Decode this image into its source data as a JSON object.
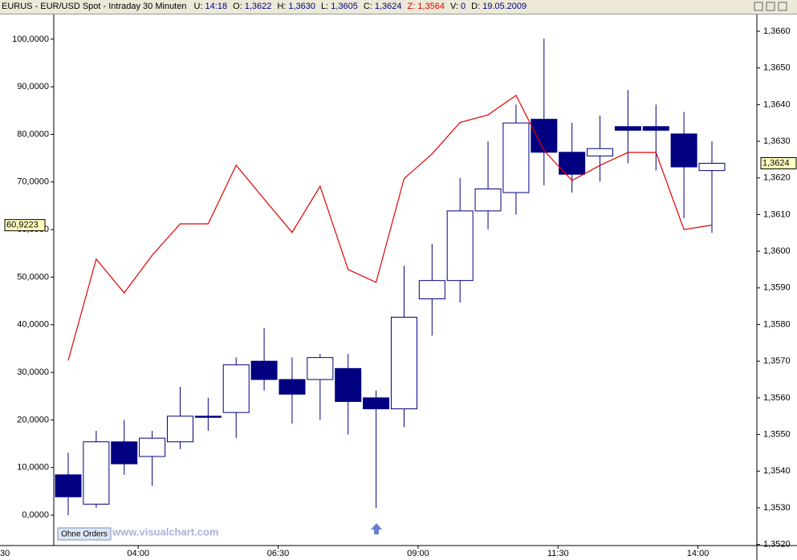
{
  "header": {
    "symbol": "EURUS - EUR/USD Spot - Intraday 30 Minuten",
    "fields": [
      {
        "label": "U:",
        "value": "14:18",
        "color": "#000080"
      },
      {
        "label": "O:",
        "value": "1,3622",
        "color": "#000080"
      },
      {
        "label": "H:",
        "value": "1,3630",
        "color": "#000080"
      },
      {
        "label": "L:",
        "value": "1,3605",
        "color": "#000080"
      },
      {
        "label": "C:",
        "value": "1,3624",
        "color": "#000080"
      },
      {
        "label": "Z:",
        "value": "1,3564",
        "color": "#e00000"
      },
      {
        "label": "V:",
        "value": "0",
        "color": "#000080"
      },
      {
        "label": "D:",
        "value": "19.05.2009",
        "color": "#000080"
      }
    ]
  },
  "button": "Ohne Orders",
  "watermark": "www.visualchart.com",
  "chart_data": {
    "type": "candlestick",
    "categories": [
      null,
      null,
      null,
      "04:00",
      null,
      null,
      null,
      null,
      "06:30",
      null,
      null,
      null,
      null,
      "09:00",
      null,
      null,
      null,
      null,
      "11:30",
      null,
      null,
      null,
      null,
      "14:00"
    ],
    "x_left_label": "30",
    "ylim": [
      -6.4,
      105.2
    ],
    "yticks": [
      {
        "value": 0,
        "label": "0,0000"
      },
      {
        "value": 10,
        "label": "10,0000"
      },
      {
        "value": 20,
        "label": "20,0000"
      },
      {
        "value": 30,
        "label": "30,0000"
      },
      {
        "value": 40,
        "label": "40,0000"
      },
      {
        "value": 50,
        "label": "50,0000"
      },
      {
        "value": 60,
        "label": "60,0000"
      },
      {
        "value": 70,
        "label": "70,0000"
      },
      {
        "value": 80,
        "label": "80,0000"
      },
      {
        "value": 90,
        "label": "90,0000"
      },
      {
        "value": 100,
        "label": "100,0000"
      }
    ],
    "y2lim": [
      1.35197,
      1.36646
    ],
    "y2ticks": [
      {
        "value": 1.352,
        "label": "1,3520"
      },
      {
        "value": 1.353,
        "label": "1,3530"
      },
      {
        "value": 1.354,
        "label": "1,3540"
      },
      {
        "value": 1.355,
        "label": "1,3550"
      },
      {
        "value": 1.356,
        "label": "1,3560"
      },
      {
        "value": 1.357,
        "label": "1,3570"
      },
      {
        "value": 1.358,
        "label": "1,3580"
      },
      {
        "value": 1.359,
        "label": "1,3590"
      },
      {
        "value": 1.36,
        "label": "1,3600"
      },
      {
        "value": 1.361,
        "label": "1,3610"
      },
      {
        "value": 1.362,
        "label": "1,3620"
      },
      {
        "value": 1.363,
        "label": "1,3630"
      },
      {
        "value": 1.364,
        "label": "1,3640"
      },
      {
        "value": 1.365,
        "label": "1,3650"
      },
      {
        "value": 1.366,
        "label": "1,3660"
      }
    ],
    "series": [
      {
        "type": "candlestick",
        "axis": "y2",
        "color": "#000080",
        "open": [
          1.3539,
          1.3531,
          1.3548,
          1.3544,
          1.3548,
          1.3555,
          1.3556,
          1.357,
          1.3565,
          1.3565,
          1.3568,
          1.356,
          1.3557,
          1.3587,
          1.3592,
          1.3611,
          1.3616,
          1.3636,
          1.3627,
          1.3626,
          1.3634,
          1.3634,
          1.3632,
          1.3622
        ],
        "high": [
          1.3545,
          1.3551,
          1.3554,
          1.3551,
          1.3563,
          1.356,
          1.3571,
          1.3579,
          1.3571,
          1.3572,
          1.3572,
          1.3562,
          1.3596,
          1.3602,
          1.362,
          1.363,
          1.364,
          1.3658,
          1.3635,
          1.3637,
          1.3644,
          1.364,
          1.3638,
          1.363
        ],
        "low": [
          1.3528,
          1.353,
          1.3539,
          1.3536,
          1.3546,
          1.3551,
          1.3549,
          1.3562,
          1.3553,
          1.3554,
          1.355,
          1.353,
          1.3552,
          1.3577,
          1.3586,
          1.3606,
          1.361,
          1.3618,
          1.3616,
          1.3619,
          1.3624,
          1.3622,
          1.3609,
          1.3605
        ],
        "close": [
          1.3533,
          1.3548,
          1.3542,
          1.3549,
          1.3555,
          1.3555,
          1.3569,
          1.3565,
          1.3561,
          1.3571,
          1.3559,
          1.3557,
          1.3582,
          1.3592,
          1.3611,
          1.3617,
          1.3635,
          1.3627,
          1.3621,
          1.3628,
          1.3633,
          1.3633,
          1.3623,
          1.3624
        ]
      },
      {
        "type": "line",
        "axis": "y",
        "color": "#e00000",
        "values": [
          32.5,
          53.8,
          46.7,
          54.6,
          61.2,
          61.2,
          73.5,
          66.4,
          59.4,
          69.1,
          51.6,
          48.9,
          70.7,
          75.9,
          82.5,
          84.1,
          88.2,
          76.6,
          70.3,
          73.5,
          76.2,
          76.2,
          60.0,
          60.9223
        ]
      }
    ],
    "last_values": {
      "y": {
        "value": 60.9223,
        "label": "60,9223"
      },
      "y2": {
        "value": 1.3624,
        "label": "1,3624"
      }
    }
  }
}
